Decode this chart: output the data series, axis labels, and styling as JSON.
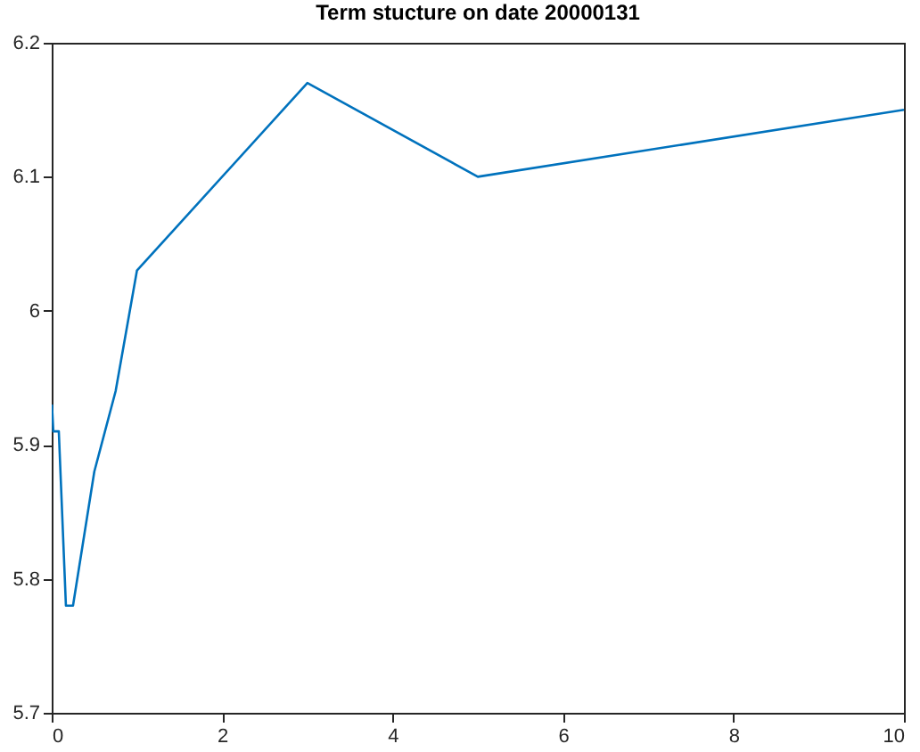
{
  "chart_data": {
    "type": "line",
    "title": "Term stucture on date 20000131",
    "x": [
      0.0027,
      0.0192,
      0.0833,
      0.1667,
      0.25,
      0.5,
      0.75,
      1,
      3,
      5,
      10
    ],
    "series": [
      {
        "color": "#0072bd",
        "values": [
          5.93,
          5.91,
          5.91,
          5.78,
          5.78,
          5.88,
          5.94,
          6.03,
          6.17,
          6.1,
          6.15
        ]
      }
    ],
    "xlim": [
      0,
      10
    ],
    "xticks": [
      0,
      2,
      4,
      6,
      8,
      10
    ],
    "ylim": [
      5.7,
      6.2
    ],
    "yticks": [
      5.7,
      5.8,
      5.9,
      6,
      6.1,
      6.2
    ],
    "grid": false,
    "legend": false,
    "marker": "none",
    "line_style": "solid"
  }
}
